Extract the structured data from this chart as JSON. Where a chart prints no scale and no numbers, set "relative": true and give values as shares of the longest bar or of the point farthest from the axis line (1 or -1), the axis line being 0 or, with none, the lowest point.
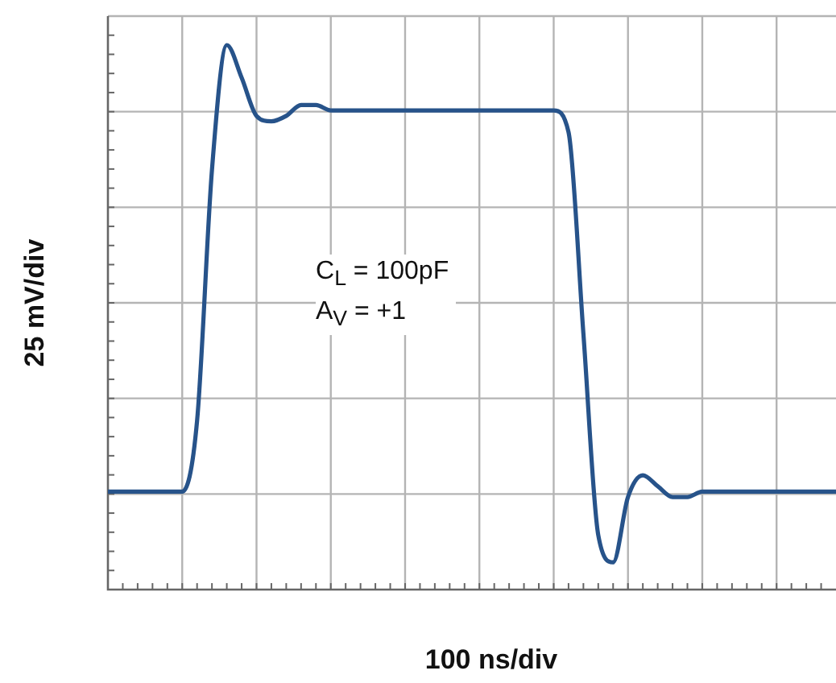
{
  "chart_data": {
    "type": "line",
    "relative": true,
    "xlabel": "100 ns/div",
    "ylabel": "25 mV/div",
    "grid": true,
    "legend": false,
    "annotations": [
      "C$_{L}$ = 100pF",
      "A$_{V}$ = +1"
    ],
    "categories": [
      null,
      null,
      null,
      null,
      null,
      null,
      null,
      null,
      null,
      null,
      null,
      null,
      null,
      null,
      null,
      null,
      null,
      null,
      null,
      null,
      null,
      null,
      null,
      null,
      null,
      null,
      null,
      null,
      null,
      null,
      null,
      null,
      null,
      null,
      null,
      null,
      null,
      null,
      null,
      null,
      null,
      null,
      null,
      null,
      null,
      null,
      null,
      null,
      null,
      null
    ],
    "series": [
      {
        "color": "#27538a",
        "values": [
          0.18,
          0.18,
          0.18,
          0.18,
          0.18,
          0.18,
          0.31,
          0.77,
          1,
          0.94,
          0.87,
          0.86,
          0.87,
          0.89,
          0.89,
          0.88,
          0.88,
          0.88,
          0.88,
          0.88,
          0.88,
          0.88,
          0.88,
          0.88,
          0.88,
          0.88,
          0.88,
          0.88,
          0.88,
          0.88,
          0.88,
          0.84,
          0.47,
          0.1,
          0.05,
          0.17,
          0.21,
          0.19,
          0.17,
          0.17,
          0.18,
          0.18,
          0.18,
          0.18,
          0.18,
          0.18,
          0.18,
          0.18,
          0.18,
          0.18
        ]
      }
    ]
  }
}
